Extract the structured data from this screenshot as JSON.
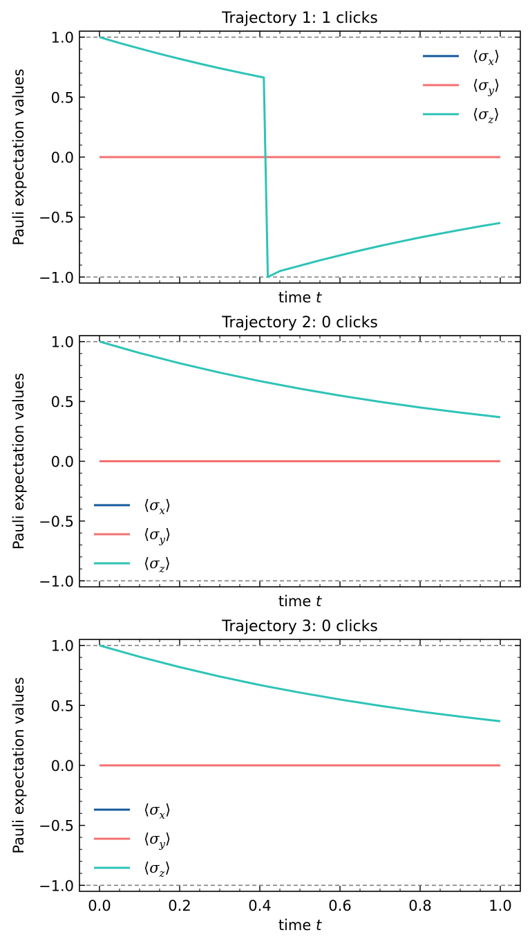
{
  "colors": {
    "sigma_x": "#13599a",
    "sigma_y": "#f47070",
    "sigma_z": "#2dc3b7",
    "refline": "#808080"
  },
  "legend_symbols": {
    "open": "⟨",
    "close": "⟩",
    "sigma": "σ"
  },
  "chart_data": [
    {
      "type": "line",
      "title": "Trajectory 1: 1 clicks",
      "xlabel": "time t",
      "ylabel": "Pauli expectation values",
      "xlim": [
        -0.05,
        1.05
      ],
      "ylim": [
        -1.05,
        1.05
      ],
      "yticks": [
        "1.0",
        "0.5",
        "0.0",
        "−0.5",
        "−1.0"
      ],
      "ytick_values": [
        1.0,
        0.5,
        0.0,
        -0.5,
        -1.0
      ],
      "xticks": [],
      "xtick_values": [
        0,
        0.2,
        0.4,
        0.6,
        0.8,
        1.0
      ],
      "reference_lines": [
        1.0,
        -1.0
      ],
      "legend_position": "upper right",
      "series": [
        {
          "name_sub": "x",
          "key": "sigma_x",
          "x": [
            0,
            1.0
          ],
          "y": [
            0,
            0
          ]
        },
        {
          "name_sub": "y",
          "key": "sigma_y",
          "x": [
            0,
            1.0
          ],
          "y": [
            0,
            0
          ]
        },
        {
          "name_sub": "z",
          "key": "sigma_z",
          "x": [
            0,
            0.05,
            0.1,
            0.15,
            0.2,
            0.25,
            0.3,
            0.35,
            0.4,
            0.41,
            0.42,
            0.45,
            0.5,
            0.55,
            0.6,
            0.65,
            0.7,
            0.75,
            0.8,
            0.85,
            0.9,
            0.95,
            1.0
          ],
          "y": [
            1.0,
            0.951,
            0.905,
            0.861,
            0.819,
            0.779,
            0.741,
            0.705,
            0.67,
            0.664,
            -1.0,
            -0.95,
            -0.905,
            -0.861,
            -0.819,
            -0.779,
            -0.741,
            -0.705,
            -0.67,
            -0.638,
            -0.607,
            -0.577,
            -0.549
          ]
        }
      ]
    },
    {
      "type": "line",
      "title": "Trajectory 2: 0 clicks",
      "xlabel": "time t",
      "ylabel": "Pauli expectation values",
      "xlim": [
        -0.05,
        1.05
      ],
      "ylim": [
        -1.05,
        1.05
      ],
      "yticks": [
        "1.0",
        "0.5",
        "0.0",
        "−0.5",
        "−1.0"
      ],
      "ytick_values": [
        1.0,
        0.5,
        0.0,
        -0.5,
        -1.0
      ],
      "xticks": [],
      "xtick_values": [
        0,
        0.2,
        0.4,
        0.6,
        0.8,
        1.0
      ],
      "reference_lines": [
        1.0,
        -1.0
      ],
      "legend_position": "lower left",
      "series": [
        {
          "name_sub": "x",
          "key": "sigma_x",
          "x": [
            0,
            1.0
          ],
          "y": [
            0,
            0
          ]
        },
        {
          "name_sub": "y",
          "key": "sigma_y",
          "x": [
            0,
            1.0
          ],
          "y": [
            0,
            0
          ]
        },
        {
          "name_sub": "z",
          "key": "sigma_z",
          "x": [
            0,
            0.1,
            0.2,
            0.3,
            0.4,
            0.5,
            0.6,
            0.7,
            0.8,
            0.9,
            1.0
          ],
          "y": [
            1.0,
            0.905,
            0.819,
            0.741,
            0.67,
            0.607,
            0.549,
            0.497,
            0.449,
            0.407,
            0.368
          ]
        }
      ]
    },
    {
      "type": "line",
      "title": "Trajectory 3: 0 clicks",
      "xlabel": "time t",
      "ylabel": "Pauli expectation values",
      "xlim": [
        -0.05,
        1.05
      ],
      "ylim": [
        -1.05,
        1.05
      ],
      "yticks": [
        "1.0",
        "0.5",
        "0.0",
        "−0.5",
        "−1.0"
      ],
      "ytick_values": [
        1.0,
        0.5,
        0.0,
        -0.5,
        -1.0
      ],
      "xticks": [
        "0.0",
        "0.2",
        "0.4",
        "0.6",
        "0.8",
        "1.0"
      ],
      "xtick_values": [
        0,
        0.2,
        0.4,
        0.6,
        0.8,
        1.0
      ],
      "reference_lines": [
        1.0,
        -1.0
      ],
      "legend_position": "lower left",
      "series": [
        {
          "name_sub": "x",
          "key": "sigma_x",
          "x": [
            0,
            1.0
          ],
          "y": [
            0,
            0
          ]
        },
        {
          "name_sub": "y",
          "key": "sigma_y",
          "x": [
            0,
            1.0
          ],
          "y": [
            0,
            0
          ]
        },
        {
          "name_sub": "z",
          "key": "sigma_z",
          "x": [
            0,
            0.1,
            0.2,
            0.3,
            0.4,
            0.5,
            0.6,
            0.7,
            0.8,
            0.9,
            1.0
          ],
          "y": [
            1.0,
            0.905,
            0.819,
            0.741,
            0.67,
            0.607,
            0.549,
            0.497,
            0.449,
            0.407,
            0.368
          ]
        }
      ]
    }
  ]
}
